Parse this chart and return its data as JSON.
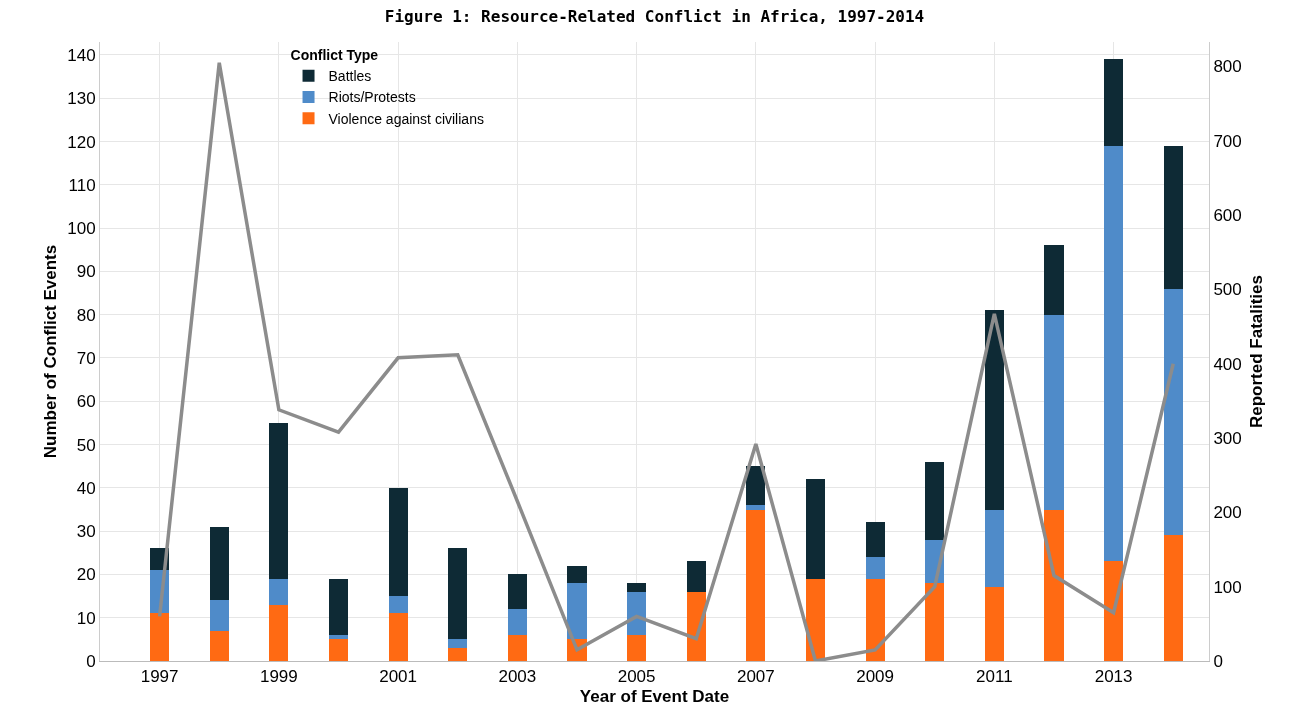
{
  "chart_data": {
    "type": "bar",
    "title": "Figure 1: Resource-Related Conflict in Africa, 1997-2014",
    "xlabel": "Year of Event Date",
    "ylabel": "Number of Conflict Events",
    "y2label": "Reported Fatalities",
    "legend_title": "Conflict Type",
    "x": [
      1997,
      1998,
      1999,
      2000,
      2001,
      2002,
      2003,
      2004,
      2005,
      2006,
      2007,
      2008,
      2009,
      2010,
      2011,
      2012,
      2013,
      2014
    ],
    "stacked": true,
    "series": [
      {
        "name": "Violence against civilians",
        "color": "#ff6a13",
        "values": [
          11,
          7,
          13,
          5,
          11,
          3,
          6,
          5,
          6,
          16,
          35,
          19,
          19,
          18,
          17,
          35,
          23,
          29
        ]
      },
      {
        "name": "Riots/Protests",
        "color": "#4f8bc9",
        "values": [
          10,
          7,
          6,
          1,
          4,
          2,
          6,
          13,
          10,
          0,
          1,
          0,
          5,
          10,
          18,
          45,
          96,
          57
        ]
      },
      {
        "name": "Battles",
        "color": "#0e2a35",
        "values": [
          5,
          17,
          36,
          13,
          25,
          21,
          8,
          4,
          2,
          7,
          9,
          23,
          8,
          18,
          46,
          16,
          20,
          33
        ]
      },
      {
        "type": "line",
        "axis": "y2",
        "color": "#8c8c8c",
        "values": [
          60,
          805,
          338,
          308,
          408,
          412,
          215,
          15,
          60,
          30,
          292,
          0,
          15,
          100,
          467,
          115,
          65,
          400
        ]
      }
    ],
    "xlim": [
      1996,
      2014.6
    ],
    "xticks": [
      1997,
      1999,
      2001,
      2003,
      2005,
      2007,
      2009,
      2011,
      2013
    ],
    "ylim": [
      0,
      143
    ],
    "yticks": [
      0,
      10,
      20,
      30,
      40,
      50,
      60,
      70,
      80,
      90,
      100,
      110,
      120,
      130,
      140
    ],
    "y2lim": [
      0,
      833
    ],
    "y2ticks": [
      0,
      100,
      200,
      300,
      400,
      500,
      600,
      700,
      800
    ],
    "grid": true,
    "legend": "top left",
    "marker": "none",
    "line_style": "solid"
  }
}
